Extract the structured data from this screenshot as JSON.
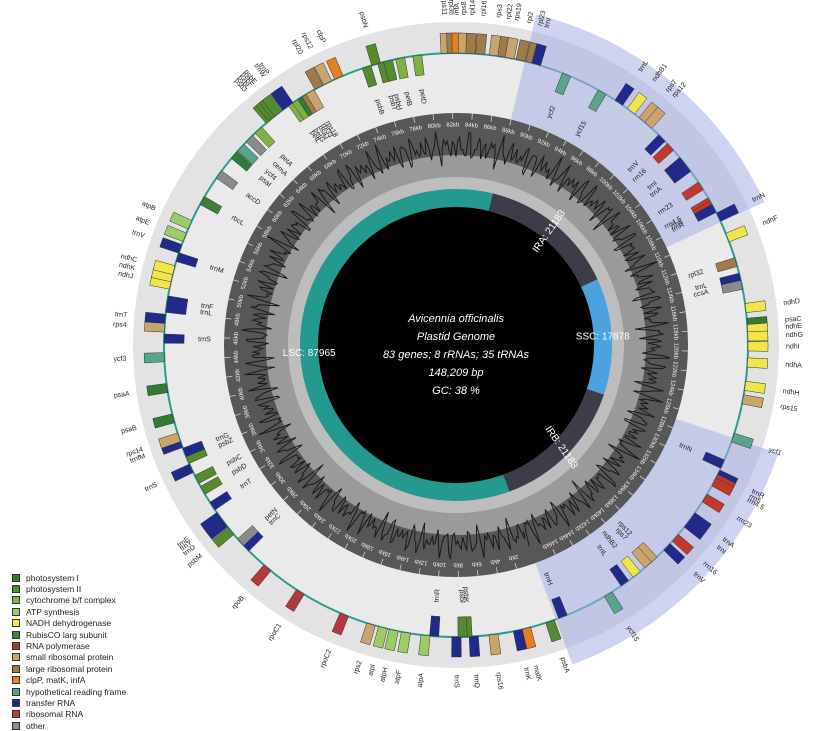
{
  "center": {
    "title": "Avicennia officinalis",
    "subtitle": "Plastid Genome",
    "stats": "83 genes; 8 rRNAs; 35 tRNAs",
    "length": "148,209 bp",
    "gc": "GC: 38 %"
  },
  "regions": {
    "lsc": "LSC: 87965",
    "ssc": "SSC: 17878",
    "ira": "IRA: 21183",
    "irb": "IRB: 21183"
  },
  "legend": [
    {
      "label": "photosystem I",
      "color": "#2e7d32"
    },
    {
      "label": "photosystem II",
      "color": "#558b2f"
    },
    {
      "label": "cytochrome b/f complex",
      "color": "#7cb342"
    },
    {
      "label": "ATP synthesis",
      "color": "#9ccc65"
    },
    {
      "label": "NADH dehydrogenase",
      "color": "#f2e54a"
    },
    {
      "label": "RubisCO larg subunit",
      "color": "#3e7f3a"
    },
    {
      "label": "RNA polymerase",
      "color": "#b23a3a"
    },
    {
      "label": "small ribosomal protein",
      "color": "#c9a46c"
    },
    {
      "label": "large ribosomal protein",
      "color": "#a17a4a"
    },
    {
      "label": "clpP, matK, infA",
      "color": "#e67e22"
    },
    {
      "label": "hypothetical reading frame",
      "color": "#5aa38c"
    },
    {
      "label": "transfer RNA",
      "color": "#1f2b8c"
    },
    {
      "label": "ribosomal RNA",
      "color": "#c0392b"
    },
    {
      "label": "other",
      "color": "#8a8a8a"
    }
  ],
  "kb_ticks": [
    "2kb",
    "4kb",
    "6kb",
    "8kb",
    "10kb",
    "12kb",
    "14kb",
    "16kb",
    "18kb",
    "20kb",
    "22kb",
    "24kb",
    "26kb",
    "28kb",
    "30kb",
    "32kb",
    "34kb",
    "36kb",
    "38kb",
    "40kb",
    "42kb",
    "44kb",
    "46kb",
    "48kb",
    "50kb",
    "52kb",
    "54kb",
    "56kb",
    "58kb",
    "60kb",
    "62kb",
    "64kb",
    "66kb",
    "68kb",
    "70kb",
    "72kb",
    "74kb",
    "76kb",
    "78kb",
    "80kb",
    "82kb",
    "84kb",
    "86kb",
    "88kb",
    "90kb",
    "92kb",
    "94kb",
    "96kb",
    "98kb",
    "100kb",
    "102kb",
    "104kb",
    "106kb",
    "108kb",
    "110kb",
    "112kb",
    "114kb",
    "116kb",
    "118kb",
    "120kb",
    "122kb",
    "124kb",
    "126kb",
    "128kb",
    "130kb",
    "132kb",
    "134kb",
    "136kb",
    "138kb",
    "140kb",
    "142kb",
    "144kb",
    "146kb"
  ],
  "genes": [
    {
      "name": "psbA",
      "pos": 500,
      "cat": "photosystem II",
      "strand": "+"
    },
    {
      "name": "matK",
      "pos": 2500,
      "cat": "clpP, matK, infA",
      "strand": "+"
    },
    {
      "name": "trnK",
      "pos": 3200,
      "cat": "transfer RNA",
      "strand": "+"
    },
    {
      "name": "rps16",
      "pos": 5200,
      "cat": "small ribosomal protein",
      "strand": "+"
    },
    {
      "name": "trnQ",
      "pos": 6800,
      "cat": "transfer RNA",
      "strand": "+"
    },
    {
      "name": "psbK",
      "pos": 7300,
      "cat": "photosystem II",
      "strand": "-"
    },
    {
      "name": "psbI",
      "pos": 7700,
      "cat": "photosystem II",
      "strand": "-"
    },
    {
      "name": "trnS",
      "pos": 8200,
      "cat": "transfer RNA",
      "strand": "+"
    },
    {
      "name": "trnR",
      "pos": 10000,
      "cat": "transfer RNA",
      "strand": "-"
    },
    {
      "name": "atpA",
      "pos": 10700,
      "cat": "ATP synthesis",
      "strand": "+"
    },
    {
      "name": "atpF",
      "pos": 12300,
      "cat": "ATP synthesis",
      "strand": "+"
    },
    {
      "name": "atpH",
      "pos": 13300,
      "cat": "ATP synthesis",
      "strand": "+"
    },
    {
      "name": "atpI",
      "pos": 14200,
      "cat": "ATP synthesis",
      "strand": "+"
    },
    {
      "name": "rps2",
      "pos": 15200,
      "cat": "small ribosomal protein",
      "strand": "+"
    },
    {
      "name": "rpoC2",
      "pos": 17500,
      "cat": "RNA polymerase",
      "strand": "+"
    },
    {
      "name": "rpoC1",
      "pos": 21500,
      "cat": "RNA polymerase",
      "strand": "+"
    },
    {
      "name": "rpoB",
      "pos": 24800,
      "cat": "RNA polymerase",
      "strand": "+"
    },
    {
      "name": "trnC",
      "pos": 27200,
      "cat": "transfer RNA",
      "strand": "-"
    },
    {
      "name": "petN",
      "pos": 27800,
      "cat": "other",
      "strand": "-"
    },
    {
      "name": "psbM",
      "pos": 29000,
      "cat": "photosystem II",
      "strand": "+"
    },
    {
      "name": "trnD",
      "pos": 29800,
      "cat": "transfer RNA",
      "strand": "+"
    },
    {
      "name": "trnY",
      "pos": 30200,
      "cat": "transfer RNA",
      "strand": "+"
    },
    {
      "name": "trnE",
      "pos": 30500,
      "cat": "transfer RNA",
      "strand": "+"
    },
    {
      "name": "trnT",
      "pos": 31500,
      "cat": "transfer RNA",
      "strand": "-"
    },
    {
      "name": "psbD",
      "pos": 33000,
      "cat": "photosystem II",
      "strand": "-"
    },
    {
      "name": "psbC",
      "pos": 34000,
      "cat": "photosystem II",
      "strand": "-"
    },
    {
      "name": "trnS",
      "pos": 35000,
      "cat": "transfer RNA",
      "strand": "+"
    },
    {
      "name": "psbZ",
      "pos": 35800,
      "cat": "photosystem II",
      "strand": "-"
    },
    {
      "name": "trnG",
      "pos": 36400,
      "cat": "transfer RNA",
      "strand": "-"
    },
    {
      "name": "trnfM",
      "pos": 37200,
      "cat": "transfer RNA",
      "strand": "+"
    },
    {
      "name": "rps14",
      "pos": 37700,
      "cat": "small ribosomal protein",
      "strand": "+"
    },
    {
      "name": "psaB",
      "pos": 39300,
      "cat": "photosystem I",
      "strand": "+"
    },
    {
      "name": "psaA",
      "pos": 41800,
      "cat": "photosystem I",
      "strand": "+"
    },
    {
      "name": "ycf3",
      "pos": 44300,
      "cat": "hypothetical reading frame",
      "strand": "+"
    },
    {
      "name": "trnS",
      "pos": 45800,
      "cat": "transfer RNA",
      "strand": "-"
    },
    {
      "name": "rps4",
      "pos": 46700,
      "cat": "small ribosomal protein",
      "strand": "+"
    },
    {
      "name": "trnT",
      "pos": 47400,
      "cat": "transfer RNA",
      "strand": "+"
    },
    {
      "name": "trnL",
      "pos": 48300,
      "cat": "transfer RNA",
      "strand": "-"
    },
    {
      "name": "trnF",
      "pos": 48900,
      "cat": "transfer RNA",
      "strand": "-"
    },
    {
      "name": "ndhJ",
      "pos": 50200,
      "cat": "NADH dehydrogenase",
      "strand": "+"
    },
    {
      "name": "ndhK",
      "pos": 50800,
      "cat": "NADH dehydrogenase",
      "strand": "+"
    },
    {
      "name": "ndhC",
      "pos": 51400,
      "cat": "NADH dehydrogenase",
      "strand": "+"
    },
    {
      "name": "trnM",
      "pos": 52500,
      "cat": "transfer RNA",
      "strand": "-"
    },
    {
      "name": "trnV",
      "pos": 53200,
      "cat": "transfer RNA",
      "strand": "+"
    },
    {
      "name": "atpE",
      "pos": 54200,
      "cat": "ATP synthesis",
      "strand": "+"
    },
    {
      "name": "atpB",
      "pos": 55300,
      "cat": "ATP synthesis",
      "strand": "+"
    },
    {
      "name": "rbcL",
      "pos": 57500,
      "cat": "RubisCO larg subunit",
      "strand": "-"
    },
    {
      "name": "accD",
      "pos": 60000,
      "cat": "other",
      "strand": "-"
    },
    {
      "name": "psaI",
      "pos": 62000,
      "cat": "photosystem I",
      "strand": "-"
    },
    {
      "name": "ycf4",
      "pos": 62800,
      "cat": "hypothetical reading frame",
      "strand": "-"
    },
    {
      "name": "cemA",
      "pos": 63800,
      "cat": "other",
      "strand": "-"
    },
    {
      "name": "petA",
      "pos": 64800,
      "cat": "cytochrome b/f complex",
      "strand": "-"
    },
    {
      "name": "psbJ",
      "pos": 66000,
      "cat": "photosystem II",
      "strand": "+"
    },
    {
      "name": "psbL",
      "pos": 66300,
      "cat": "photosystem II",
      "strand": "+"
    },
    {
      "name": "psbF",
      "pos": 66600,
      "cat": "photosystem II",
      "strand": "+"
    },
    {
      "name": "psbE",
      "pos": 66900,
      "cat": "photosystem II",
      "strand": "+"
    },
    {
      "name": "trnW",
      "pos": 67700,
      "cat": "transfer RNA",
      "strand": "+"
    },
    {
      "name": "trnP",
      "pos": 68000,
      "cat": "transfer RNA",
      "strand": "+"
    },
    {
      "name": "petL",
      "pos": 68300,
      "cat": "cytochrome b/f complex",
      "strand": "-"
    },
    {
      "name": "petG",
      "pos": 68700,
      "cat": "cytochrome b/f complex",
      "strand": "-"
    },
    {
      "name": "psaJ",
      "pos": 69200,
      "cat": "photosystem I",
      "strand": "-"
    },
    {
      "name": "rpl33",
      "pos": 69600,
      "cat": "large ribosomal protein",
      "strand": "-"
    },
    {
      "name": "rps18",
      "pos": 70000,
      "cat": "small ribosomal protein",
      "strand": "-"
    },
    {
      "name": "rpl20",
      "pos": 70800,
      "cat": "large ribosomal protein",
      "strand": "+"
    },
    {
      "name": "rps12",
      "pos": 71600,
      "cat": "small ribosomal protein",
      "strand": "+"
    },
    {
      "name": "clpP",
      "pos": 72600,
      "cat": "clpP, matK, infA",
      "strand": "+"
    },
    {
      "name": "psbB",
      "pos": 75000,
      "cat": "photosystem II",
      "strand": "-"
    },
    {
      "name": "psbN",
      "pos": 75800,
      "cat": "photosystem II",
      "strand": "+"
    },
    {
      "name": "psbT",
      "pos": 76300,
      "cat": "photosystem II",
      "strand": "-"
    },
    {
      "name": "psbH",
      "pos": 76800,
      "cat": "photosystem II",
      "strand": "-"
    },
    {
      "name": "petB",
      "pos": 77800,
      "cat": "cytochrome b/f complex",
      "strand": "-"
    },
    {
      "name": "petD",
      "pos": 79200,
      "cat": "cytochrome b/f complex",
      "strand": "-"
    },
    {
      "name": "rps11",
      "pos": 81500,
      "cat": "small ribosomal protein",
      "strand": "+"
    },
    {
      "name": "rpl36",
      "pos": 82000,
      "cat": "large ribosomal protein",
      "strand": "+"
    },
    {
      "name": "infA",
      "pos": 82400,
      "cat": "clpP, matK, infA",
      "strand": "+"
    },
    {
      "name": "rps8",
      "pos": 82900,
      "cat": "small ribosomal protein",
      "strand": "+"
    },
    {
      "name": "rpl14",
      "pos": 83500,
      "cat": "large ribosomal protein",
      "strand": "+"
    },
    {
      "name": "rpl16",
      "pos": 84300,
      "cat": "large ribosomal protein",
      "strand": "+"
    },
    {
      "name": "rps3",
      "pos": 85400,
      "cat": "small ribosomal protein",
      "strand": "+"
    },
    {
      "name": "rpl22",
      "pos": 86100,
      "cat": "large ribosomal protein",
      "strand": "+"
    },
    {
      "name": "rps19",
      "pos": 86700,
      "cat": "small ribosomal protein",
      "strand": "+"
    },
    {
      "name": "rpl2",
      "pos": 87600,
      "cat": "large ribosomal protein",
      "strand": "+"
    },
    {
      "name": "rpl23",
      "pos": 88400,
      "cat": "large ribosomal protein",
      "strand": "+"
    },
    {
      "name": "trnI",
      "pos": 88900,
      "cat": "transfer RNA",
      "strand": "+"
    },
    {
      "name": "ycf2",
      "pos": 91500,
      "cat": "hypothetical reading frame",
      "strand": "-"
    },
    {
      "name": "ycf15",
      "pos": 94700,
      "cat": "hypothetical reading frame",
      "strand": "-"
    },
    {
      "name": "trnL",
      "pos": 96300,
      "cat": "transfer RNA",
      "strand": "+"
    },
    {
      "name": "ndhB1",
      "pos": 97500,
      "cat": "NADH dehydrogenase",
      "strand": "+"
    },
    {
      "name": "rps7",
      "pos": 98700,
      "cat": "small ribosomal protein",
      "strand": "+"
    },
    {
      "name": "rps12",
      "pos": 99300,
      "cat": "small ribosomal protein",
      "strand": "+"
    },
    {
      "name": "trnV",
      "pos": 100800,
      "cat": "transfer RNA",
      "strand": "-"
    },
    {
      "name": "rrn16",
      "pos": 101800,
      "cat": "ribosomal RNA",
      "strand": "-"
    },
    {
      "name": "trnI",
      "pos": 103300,
      "cat": "transfer RNA",
      "strand": "-"
    },
    {
      "name": "trnA",
      "pos": 104000,
      "cat": "transfer RNA",
      "strand": "-"
    },
    {
      "name": "rrn23",
      "pos": 105800,
      "cat": "ribosomal RNA",
      "strand": "-"
    },
    {
      "name": "rrn4.5",
      "pos": 107300,
      "cat": "ribosomal RNA",
      "strand": "-"
    },
    {
      "name": "rrn5",
      "pos": 107600,
      "cat": "ribosomal RNA",
      "strand": "-"
    },
    {
      "name": "trnR",
      "pos": 107900,
      "cat": "transfer RNA",
      "strand": "-"
    },
    {
      "name": "trnN",
      "pos": 108700,
      "cat": "transfer RNA",
      "strand": "+"
    },
    {
      "name": "ndhF",
      "pos": 110500,
      "cat": "NADH dehydrogenase",
      "strand": "+"
    },
    {
      "name": "rpl32",
      "pos": 112600,
      "cat": "large ribosomal protein",
      "strand": "-"
    },
    {
      "name": "trnL",
      "pos": 113900,
      "cat": "transfer RNA",
      "strand": "-"
    },
    {
      "name": "ccsA",
      "pos": 114500,
      "cat": "other",
      "strand": "-"
    },
    {
      "name": "ndhD",
      "pos": 116400,
      "cat": "NADH dehydrogenase",
      "strand": "+"
    },
    {
      "name": "psaC",
      "pos": 117600,
      "cat": "photosystem I",
      "strand": "+"
    },
    {
      "name": "ndhE",
      "pos": 118100,
      "cat": "NADH dehydrogenase",
      "strand": "+"
    },
    {
      "name": "ndhG",
      "pos": 118700,
      "cat": "NADH dehydrogenase",
      "strand": "+"
    },
    {
      "name": "ndhI",
      "pos": 119500,
      "cat": "NADH dehydrogenase",
      "strand": "+"
    },
    {
      "name": "ndhA",
      "pos": 120800,
      "cat": "NADH dehydrogenase",
      "strand": "+"
    },
    {
      "name": "ndhH",
      "pos": 122700,
      "cat": "NADH dehydrogenase",
      "strand": "+"
    },
    {
      "name": "rps15",
      "pos": 123800,
      "cat": "small ribosomal protein",
      "strand": "+"
    },
    {
      "name": "ycf1",
      "pos": 127000,
      "cat": "hypothetical reading frame",
      "strand": "+"
    },
    {
      "name": "trnN",
      "pos": 129300,
      "cat": "transfer RNA",
      "strand": "-"
    },
    {
      "name": "trnR",
      "pos": 130200,
      "cat": "transfer RNA",
      "strand": "+"
    },
    {
      "name": "rrn5",
      "pos": 130600,
      "cat": "ribosomal RNA",
      "strand": "+"
    },
    {
      "name": "rrn4.5",
      "pos": 130900,
      "cat": "ribosomal RNA",
      "strand": "+"
    },
    {
      "name": "rrn23",
      "pos": 132400,
      "cat": "ribosomal RNA",
      "strand": "+"
    },
    {
      "name": "trnA",
      "pos": 134200,
      "cat": "transfer RNA",
      "strand": "+"
    },
    {
      "name": "trnI",
      "pos": 134900,
      "cat": "transfer RNA",
      "strand": "+"
    },
    {
      "name": "rrn16",
      "pos": 136400,
      "cat": "ribosomal RNA",
      "strand": "+"
    },
    {
      "name": "trnV",
      "pos": 137400,
      "cat": "transfer RNA",
      "strand": "+"
    },
    {
      "name": "rps12",
      "pos": 138900,
      "cat": "small ribosomal protein",
      "strand": "-"
    },
    {
      "name": "rps7",
      "pos": 139500,
      "cat": "small ribosomal protein",
      "strand": "-"
    },
    {
      "name": "ndhB2",
      "pos": 140700,
      "cat": "NADH dehydrogenase",
      "strand": "-"
    },
    {
      "name": "trnL",
      "pos": 141900,
      "cat": "transfer RNA",
      "strand": "-"
    },
    {
      "name": "ycf15",
      "pos": 143500,
      "cat": "hypothetical reading frame",
      "strand": "+"
    },
    {
      "name": "trnH",
      "pos": 147600,
      "cat": "transfer RNA",
      "strand": "-"
    }
  ]
}
